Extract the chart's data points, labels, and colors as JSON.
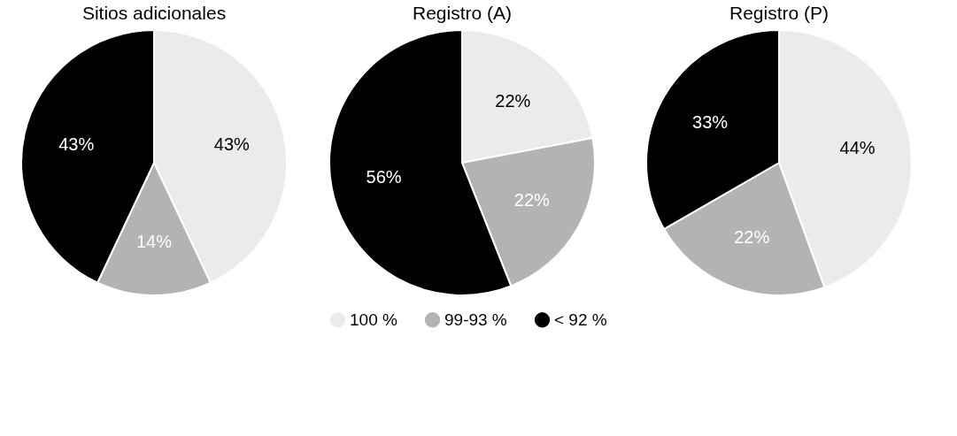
{
  "chart_data": [
    {
      "type": "pie",
      "title": "Sitios adicionales",
      "categories": [
        "100 %",
        "99-93 %",
        "< 92 %"
      ],
      "values": [
        43,
        14,
        43
      ],
      "colors": [
        "#ebebeb",
        "#b3b3b3",
        "#000000"
      ],
      "value_labels": [
        "43%",
        "14%",
        "43%"
      ],
      "legend": "bottom"
    },
    {
      "type": "pie",
      "title": "Registro (A)",
      "values": [
        22,
        22,
        56
      ],
      "colors": [
        "#ebebeb",
        "#b3b3b3",
        "#000000"
      ],
      "value_labels": [
        "22%",
        "22%",
        "56%"
      ]
    },
    {
      "type": "pie",
      "title": "Registro (P)",
      "values": [
        44,
        22,
        33
      ],
      "colors": [
        "#ebebeb",
        "#b3b3b3",
        "#000000"
      ],
      "value_labels": [
        "44%",
        "22%",
        "33%"
      ]
    }
  ]
}
